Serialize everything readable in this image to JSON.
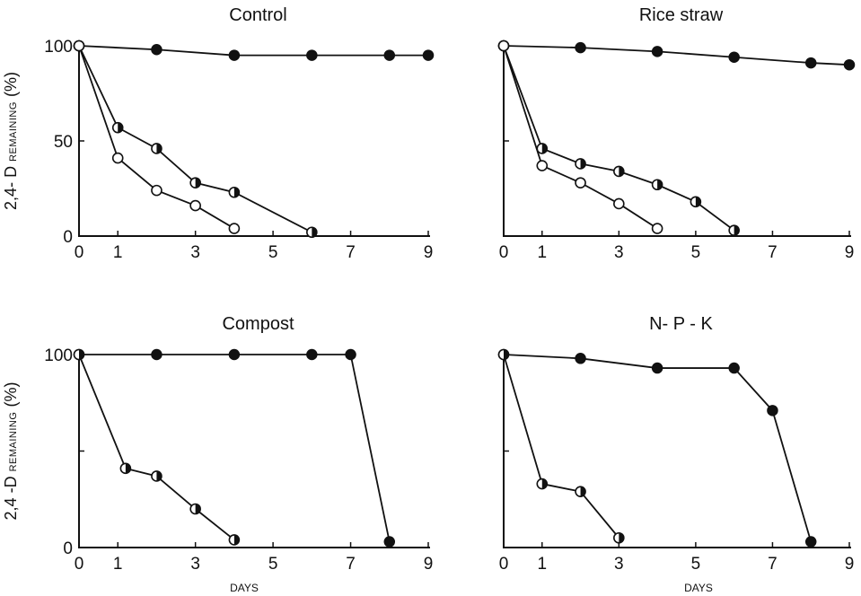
{
  "chart_data": [
    {
      "type": "line",
      "title": "Control",
      "ylabel": "2,4- D",
      "ylabel_small": "REMAINING",
      "ylabel_unit": "(%)",
      "xlabel": "",
      "xlim": [
        0,
        9
      ],
      "ylim": [
        0,
        100
      ],
      "xticks": [
        "0",
        "1",
        "3",
        "5",
        "7",
        "9"
      ],
      "yticks": [
        "0",
        "50",
        "100"
      ],
      "series": [
        {
          "marker": "filled",
          "x": [
            0,
            2,
            4,
            6,
            8,
            9
          ],
          "y": [
            100,
            98,
            95,
            95,
            95,
            95
          ]
        },
        {
          "marker": "half",
          "x": [
            0,
            1,
            2,
            3,
            4,
            6
          ],
          "y": [
            100,
            57,
            46,
            28,
            23,
            2
          ]
        },
        {
          "marker": "open",
          "x": [
            0,
            1,
            2,
            3,
            4
          ],
          "y": [
            100,
            41,
            24,
            16,
            4
          ]
        }
      ]
    },
    {
      "type": "line",
      "title": "Rice straw",
      "ylabel": "",
      "xlabel": "",
      "xlim": [
        0,
        9
      ],
      "ylim": [
        0,
        100
      ],
      "xticks": [
        "0",
        "1",
        "3",
        "5",
        "7",
        "9"
      ],
      "yticks": [
        "",
        "",
        ""
      ],
      "series": [
        {
          "marker": "filled",
          "x": [
            0,
            2,
            4,
            6,
            8,
            9
          ],
          "y": [
            100,
            99,
            97,
            94,
            91,
            90
          ]
        },
        {
          "marker": "half",
          "x": [
            0,
            1,
            2,
            3,
            4,
            5,
            6
          ],
          "y": [
            100,
            46,
            38,
            34,
            27,
            18,
            3
          ]
        },
        {
          "marker": "open",
          "x": [
            0,
            1,
            2,
            3,
            4
          ],
          "y": [
            100,
            37,
            28,
            17,
            4
          ]
        }
      ]
    },
    {
      "type": "line",
      "title": "Compost",
      "ylabel": "2,4 -D",
      "ylabel_small": "REMAINING",
      "ylabel_unit": "(%)",
      "xlabel": "DAYS",
      "xlim": [
        0,
        9
      ],
      "ylim": [
        0,
        100
      ],
      "xticks": [
        "0",
        "1",
        "3",
        "5",
        "7",
        "9"
      ],
      "yticks": [
        "0",
        "",
        "100"
      ],
      "series": [
        {
          "marker": "filled",
          "x": [
            0,
            2,
            4,
            6,
            7,
            8
          ],
          "y": [
            100,
            100,
            100,
            100,
            100,
            3
          ]
        },
        {
          "marker": "half",
          "x": [
            0,
            1.2,
            2,
            3,
            4
          ],
          "y": [
            100,
            41,
            37,
            20,
            4
          ]
        }
      ]
    },
    {
      "type": "line",
      "title": "N- P - K",
      "ylabel": "",
      "xlabel": "DAYS",
      "xlim": [
        0,
        9
      ],
      "ylim": [
        0,
        100
      ],
      "xticks": [
        "0",
        "1",
        "3",
        "5",
        "7",
        "9"
      ],
      "yticks": [
        "",
        "",
        ""
      ],
      "series": [
        {
          "marker": "filled",
          "x": [
            0,
            2,
            4,
            6,
            7,
            8
          ],
          "y": [
            100,
            98,
            93,
            93,
            71,
            3
          ]
        },
        {
          "marker": "half",
          "x": [
            0,
            1,
            2,
            3
          ],
          "y": [
            100,
            33,
            29,
            5
          ]
        }
      ]
    }
  ]
}
